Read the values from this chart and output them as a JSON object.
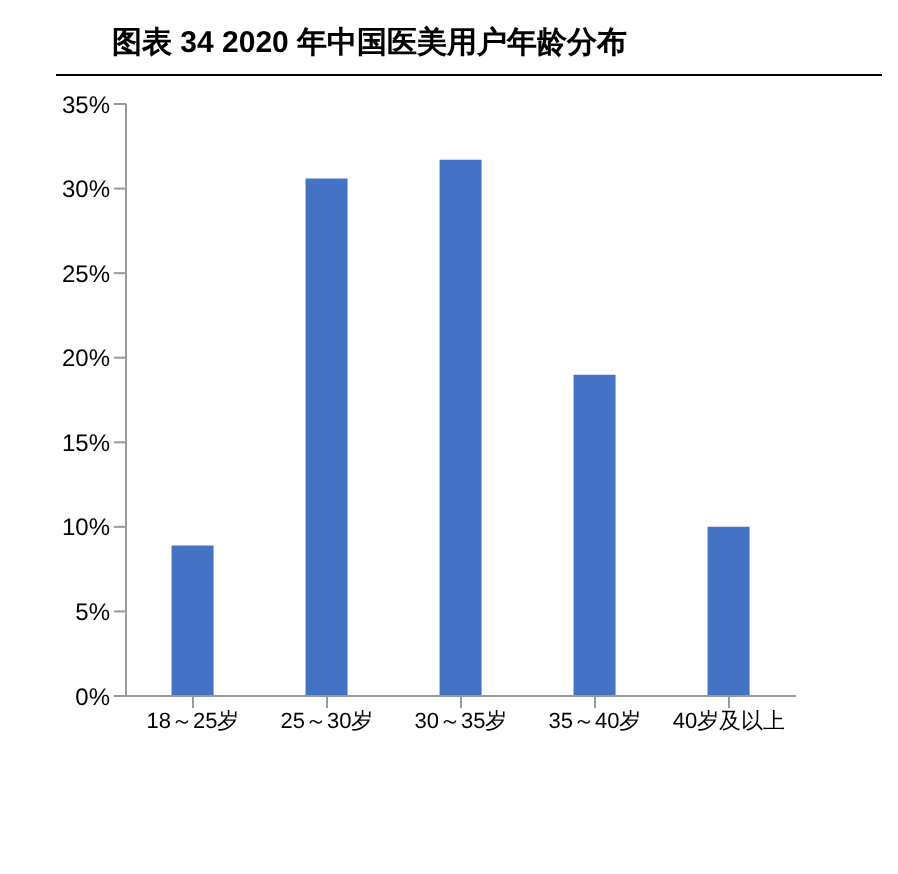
{
  "chart_data": {
    "type": "bar",
    "title": "图表 34 2020 年中国医美用户年龄分布",
    "categories": [
      "18～25岁",
      "25～30岁",
      "30～35岁",
      "35～40岁",
      "40岁及以上"
    ],
    "values": [
      8.9,
      30.6,
      31.7,
      19.0,
      10.0
    ],
    "color": "#4472c4",
    "ylim": [
      0,
      35
    ],
    "yticks": [
      {
        "value": 0,
        "label": "0%"
      },
      {
        "value": 5,
        "label": "5%"
      },
      {
        "value": 10,
        "label": "10%"
      },
      {
        "value": 15,
        "label": "15%"
      },
      {
        "value": 20,
        "label": "20%"
      },
      {
        "value": 25,
        "label": "25%"
      },
      {
        "value": 30,
        "label": "30%"
      },
      {
        "value": 35,
        "label": "35%"
      }
    ],
    "grid": false
  }
}
